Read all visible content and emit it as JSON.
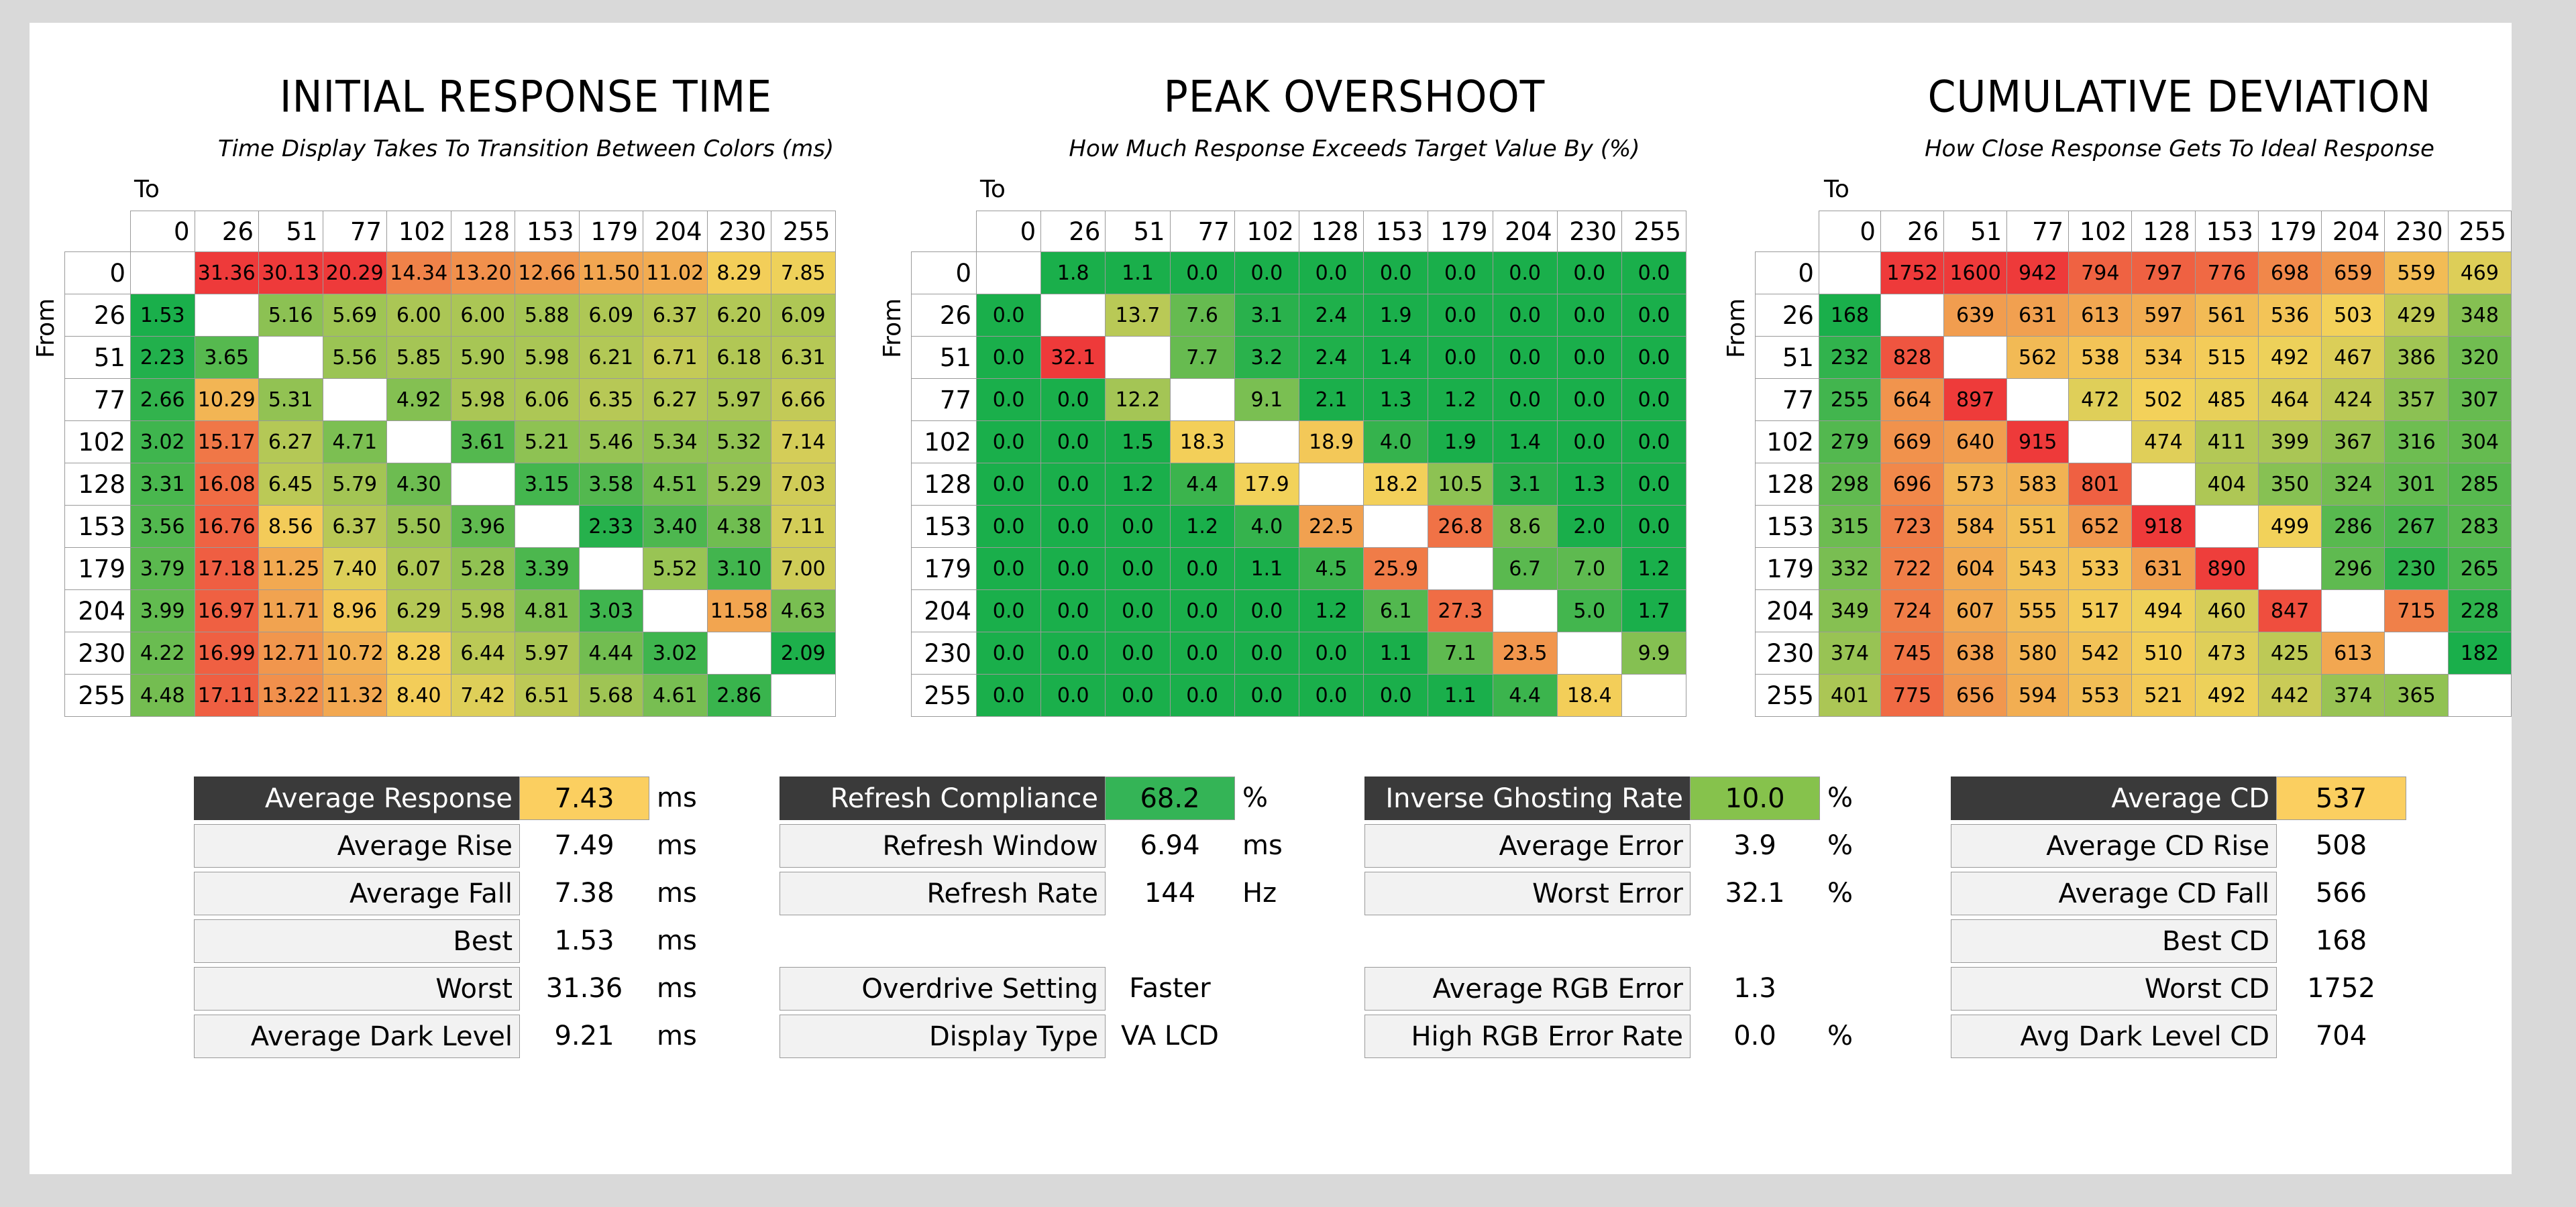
{
  "chart_data": [
    {
      "type": "heatmap",
      "title": "INITIAL RESPONSE TIME",
      "subtitle": "Time Display Takes To Transition Between Colors (ms)",
      "to_label": "To",
      "from_label": "From",
      "x": [
        "0",
        "26",
        "51",
        "77",
        "102",
        "128",
        "153",
        "179",
        "204",
        "230",
        "255"
      ],
      "y": [
        "0",
        "26",
        "51",
        "77",
        "102",
        "128",
        "153",
        "179",
        "204",
        "230",
        "255"
      ],
      "values": [
        [
          "",
          "31.36",
          "30.13",
          "20.29",
          "14.34",
          "13.20",
          "12.66",
          "11.50",
          "11.02",
          "8.29",
          "7.85"
        ],
        [
          "1.53",
          "",
          "5.16",
          "5.69",
          "6.00",
          "6.00",
          "5.88",
          "6.09",
          "6.37",
          "6.20",
          "6.09"
        ],
        [
          "2.23",
          "3.65",
          "",
          "5.56",
          "5.85",
          "5.90",
          "5.98",
          "6.21",
          "6.71",
          "6.18",
          "6.31"
        ],
        [
          "2.66",
          "10.29",
          "5.31",
          "",
          "4.92",
          "5.98",
          "6.06",
          "6.35",
          "6.27",
          "5.97",
          "6.66"
        ],
        [
          "3.02",
          "15.17",
          "6.27",
          "4.71",
          "",
          "3.61",
          "5.21",
          "5.46",
          "5.34",
          "5.32",
          "7.14"
        ],
        [
          "3.31",
          "16.08",
          "6.45",
          "5.79",
          "4.30",
          "",
          "3.15",
          "3.58",
          "4.51",
          "5.29",
          "7.03"
        ],
        [
          "3.56",
          "16.76",
          "8.56",
          "6.37",
          "5.50",
          "3.96",
          "",
          "2.33",
          "3.40",
          "4.38",
          "7.11"
        ],
        [
          "3.79",
          "17.18",
          "11.25",
          "7.40",
          "6.07",
          "5.28",
          "3.39",
          "",
          "5.52",
          "3.10",
          "7.00"
        ],
        [
          "3.99",
          "16.97",
          "11.71",
          "8.96",
          "6.29",
          "5.98",
          "4.81",
          "3.03",
          "",
          "11.58",
          "4.63"
        ],
        [
          "4.22",
          "16.99",
          "12.71",
          "10.72",
          "8.28",
          "6.44",
          "5.97",
          "4.44",
          "3.02",
          "",
          "2.09"
        ],
        [
          "4.48",
          "17.11",
          "13.22",
          "11.32",
          "8.40",
          "7.42",
          "6.51",
          "5.68",
          "4.61",
          "2.86",
          ""
        ]
      ],
      "color_scale": {
        "low": "#1aaf4b",
        "mid": "#f3d25a",
        "high": "#ee3a3a",
        "min": 2,
        "mid_value": 8,
        "max": 20
      }
    },
    {
      "type": "heatmap",
      "title": "PEAK OVERSHOOT",
      "subtitle": "How Much Response Exceeds Target Value By (%)",
      "to_label": "To",
      "from_label": "From",
      "x": [
        "0",
        "26",
        "51",
        "77",
        "102",
        "128",
        "153",
        "179",
        "204",
        "230",
        "255"
      ],
      "y": [
        "0",
        "26",
        "51",
        "77",
        "102",
        "128",
        "153",
        "179",
        "204",
        "230",
        "255"
      ],
      "values": [
        [
          "",
          "1.8",
          "1.1",
          "0.0",
          "0.0",
          "0.0",
          "0.0",
          "0.0",
          "0.0",
          "0.0",
          "0.0"
        ],
        [
          "0.0",
          "",
          "13.7",
          "7.6",
          "3.1",
          "2.4",
          "1.9",
          "0.0",
          "0.0",
          "0.0",
          "0.0"
        ],
        [
          "0.0",
          "32.1",
          "",
          "7.7",
          "3.2",
          "2.4",
          "1.4",
          "0.0",
          "0.0",
          "0.0",
          "0.0"
        ],
        [
          "0.0",
          "0.0",
          "12.2",
          "",
          "9.1",
          "2.1",
          "1.3",
          "1.2",
          "0.0",
          "0.0",
          "0.0"
        ],
        [
          "0.0",
          "0.0",
          "1.5",
          "18.3",
          "",
          "18.9",
          "4.0",
          "1.9",
          "1.4",
          "0.0",
          "0.0"
        ],
        [
          "0.0",
          "0.0",
          "1.2",
          "4.4",
          "17.9",
          "",
          "18.2",
          "10.5",
          "3.1",
          "1.3",
          "0.0"
        ],
        [
          "0.0",
          "0.0",
          "0.0",
          "1.2",
          "4.0",
          "22.5",
          "",
          "26.8",
          "8.6",
          "2.0",
          "0.0"
        ],
        [
          "0.0",
          "0.0",
          "0.0",
          "0.0",
          "1.1",
          "4.5",
          "25.9",
          "",
          "6.7",
          "7.0",
          "1.2"
        ],
        [
          "0.0",
          "0.0",
          "0.0",
          "0.0",
          "0.0",
          "1.2",
          "6.1",
          "27.3",
          "",
          "5.0",
          "1.7"
        ],
        [
          "0.0",
          "0.0",
          "0.0",
          "0.0",
          "0.0",
          "0.0",
          "1.1",
          "7.1",
          "23.5",
          "",
          "9.9"
        ],
        [
          "0.0",
          "0.0",
          "0.0",
          "0.0",
          "0.0",
          "0.0",
          "0.0",
          "1.1",
          "4.4",
          "18.4",
          ""
        ]
      ],
      "color_scale": {
        "low": "#1aaf4b",
        "mid": "#f3d25a",
        "high": "#ee3a3a",
        "min": 2,
        "mid_value": 18,
        "max": 32
      }
    },
    {
      "type": "heatmap",
      "title": "CUMULATIVE DEVIATION",
      "subtitle": "How Close Response Gets To Ideal Response",
      "to_label": "To",
      "from_label": "From",
      "x": [
        "0",
        "26",
        "51",
        "77",
        "102",
        "128",
        "153",
        "179",
        "204",
        "230",
        "255"
      ],
      "y": [
        "0",
        "26",
        "51",
        "77",
        "102",
        "128",
        "153",
        "179",
        "204",
        "230",
        "255"
      ],
      "values": [
        [
          "",
          "1752",
          "1600",
          "942",
          "794",
          "797",
          "776",
          "698",
          "659",
          "559",
          "469"
        ],
        [
          "168",
          "",
          "639",
          "631",
          "613",
          "597",
          "561",
          "536",
          "503",
          "429",
          "348"
        ],
        [
          "232",
          "828",
          "",
          "562",
          "538",
          "534",
          "515",
          "492",
          "467",
          "386",
          "320"
        ],
        [
          "255",
          "664",
          "897",
          "",
          "472",
          "502",
          "485",
          "464",
          "424",
          "357",
          "307"
        ],
        [
          "279",
          "669",
          "640",
          "915",
          "",
          "474",
          "411",
          "399",
          "367",
          "316",
          "304"
        ],
        [
          "298",
          "696",
          "573",
          "583",
          "801",
          "",
          "404",
          "350",
          "324",
          "301",
          "285"
        ],
        [
          "315",
          "723",
          "584",
          "551",
          "652",
          "918",
          "",
          "499",
          "286",
          "267",
          "283"
        ],
        [
          "332",
          "722",
          "604",
          "543",
          "533",
          "631",
          "890",
          "",
          "296",
          "230",
          "265"
        ],
        [
          "349",
          "724",
          "607",
          "555",
          "517",
          "494",
          "460",
          "847",
          "",
          "715",
          "228"
        ],
        [
          "374",
          "745",
          "638",
          "580",
          "542",
          "510",
          "473",
          "425",
          "613",
          "",
          "182"
        ],
        [
          "401",
          "775",
          "656",
          "594",
          "553",
          "521",
          "492",
          "442",
          "374",
          "365",
          ""
        ]
      ],
      "color_scale": {
        "low": "#1aaf4b",
        "mid": "#f3d25a",
        "high": "#ee3a3a",
        "min": 200,
        "mid_value": 500,
        "max": 900
      }
    }
  ],
  "stats": {
    "response": [
      {
        "label": "Average Response",
        "value": "7.43",
        "unit": "ms",
        "highlight": "#fbcf60",
        "header": true
      },
      {
        "label": "Average Rise",
        "value": "7.49",
        "unit": "ms"
      },
      {
        "label": "Average Fall",
        "value": "7.38",
        "unit": "ms"
      },
      {
        "label": "Best",
        "value": "1.53",
        "unit": "ms"
      },
      {
        "label": "Worst",
        "value": "31.36",
        "unit": "ms"
      },
      {
        "label": "Average Dark Level",
        "value": "9.21",
        "unit": "ms"
      }
    ],
    "refresh": [
      {
        "label": "Refresh Compliance",
        "value": "68.2",
        "unit": "%",
        "highlight": "#34b456",
        "header": true
      },
      {
        "label": "Refresh Window",
        "value": "6.94",
        "unit": "ms"
      },
      {
        "label": "Refresh Rate",
        "value": "144",
        "unit": "Hz"
      }
    ],
    "display": [
      {
        "label": "Overdrive Setting",
        "value": "Faster",
        "unit": ""
      },
      {
        "label": "Display Type",
        "value": "VA LCD",
        "unit": ""
      }
    ],
    "overshoot": [
      {
        "label": "Inverse Ghosting Rate",
        "value": "10.0",
        "unit": "%",
        "highlight": "#86c24c",
        "header": true
      },
      {
        "label": "Average Error",
        "value": "3.9",
        "unit": "%"
      },
      {
        "label": "Worst Error",
        "value": "32.1",
        "unit": "%"
      }
    ],
    "rgb": [
      {
        "label": "Average RGB Error",
        "value": "1.3",
        "unit": ""
      },
      {
        "label": "High RGB Error Rate",
        "value": "0.0",
        "unit": "%"
      }
    ],
    "cd": [
      {
        "label": "Average CD",
        "value": "537",
        "unit": "",
        "highlight": "#fbcf60",
        "header": true
      },
      {
        "label": "Average CD Rise",
        "value": "508",
        "unit": ""
      },
      {
        "label": "Average CD Fall",
        "value": "566",
        "unit": ""
      },
      {
        "label": "Best CD",
        "value": "168",
        "unit": ""
      },
      {
        "label": "Worst CD",
        "value": "1752",
        "unit": ""
      },
      {
        "label": "Avg Dark Level CD",
        "value": "704",
        "unit": ""
      }
    ]
  }
}
